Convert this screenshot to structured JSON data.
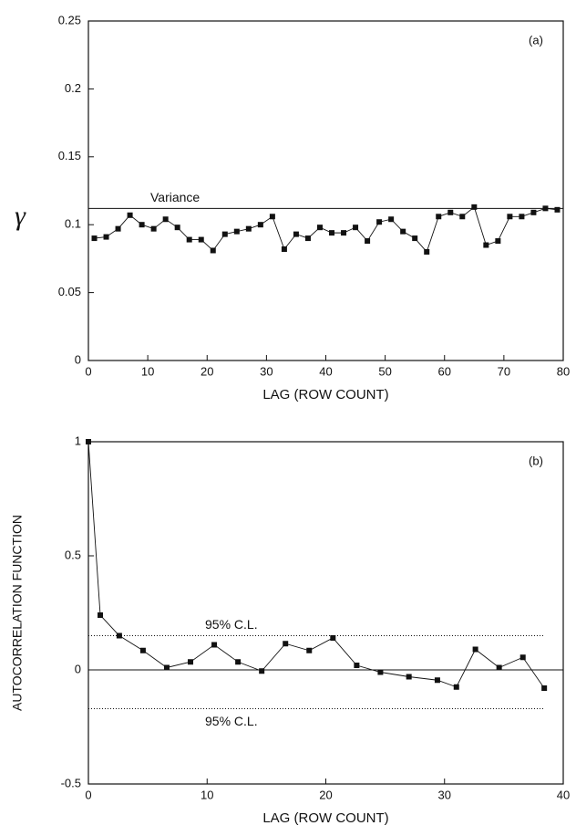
{
  "chart_data": [
    {
      "type": "line",
      "panel_label": "(a)",
      "y_label": "γ",
      "x_label": "LAG (ROW COUNT)",
      "x": [
        1,
        3,
        5,
        7,
        9,
        11,
        13,
        15,
        17,
        19,
        21,
        23,
        25,
        27,
        29,
        31,
        33,
        35,
        37,
        39,
        41,
        43,
        45,
        47,
        49,
        51,
        53,
        55,
        57,
        59,
        61,
        63,
        65,
        67,
        69,
        71,
        73,
        75,
        77,
        79
      ],
      "series": [
        {
          "color": "#111111",
          "values": [
            0.09,
            0.091,
            0.097,
            0.107,
            0.1,
            0.097,
            0.104,
            0.098,
            0.089,
            0.089,
            0.081,
            0.093,
            0.095,
            0.097,
            0.1,
            0.106,
            0.082,
            0.093,
            0.09,
            0.098,
            0.094,
            0.094,
            0.098,
            0.088,
            0.102,
            0.104,
            0.095,
            0.09,
            0.08,
            0.106,
            0.109,
            0.106,
            0.113,
            0.085,
            0.088,
            0.106,
            0.106,
            0.109,
            0.112,
            0.111
          ]
        }
      ],
      "reference_lines": [
        {
          "text": "Variance",
          "y": 0.112,
          "style": "solid"
        }
      ],
      "xlim": [
        0,
        80
      ],
      "xticks": [
        0,
        10,
        20,
        30,
        40,
        50,
        60,
        70,
        80
      ],
      "ylim": [
        0,
        0.25
      ],
      "yticks": [
        0,
        0.05,
        0.1,
        0.15,
        0.2,
        0.25
      ]
    },
    {
      "type": "line",
      "panel_label": "(b)",
      "y_label": "AUTOCORRELATION FUNCTION",
      "x_label": "LAG (ROW COUNT)",
      "x": [
        0,
        1,
        2.6,
        4.6,
        6.6,
        8.6,
        10.6,
        12.6,
        14.6,
        16.6,
        18.6,
        20.6,
        22.6,
        24.6,
        27,
        29.4,
        31,
        32.6,
        34.6,
        36.6,
        38.4
      ],
      "series": [
        {
          "color": "#111111",
          "values": [
            1,
            0.24,
            0.15,
            0.085,
            0.01,
            0.035,
            0.11,
            0.035,
            -0.005,
            0.115,
            0.085,
            0.14,
            0.02,
            -0.01,
            -0.03,
            -0.045,
            -0.075,
            0.09,
            0.01,
            0.055,
            -0.08
          ]
        }
      ],
      "reference_lines": [
        {
          "text": "95% C.L.",
          "y": 0.15,
          "style": "dotted"
        },
        {
          "text": "95% C.L.",
          "y": -0.17,
          "style": "dotted"
        }
      ],
      "zero_line": 0,
      "xlim": [
        0,
        40
      ],
      "xticks": [
        0,
        10,
        20,
        30,
        40
      ],
      "ylim": [
        -0.5,
        1
      ],
      "yticks": [
        -0.5,
        0,
        0.5,
        1
      ]
    }
  ]
}
